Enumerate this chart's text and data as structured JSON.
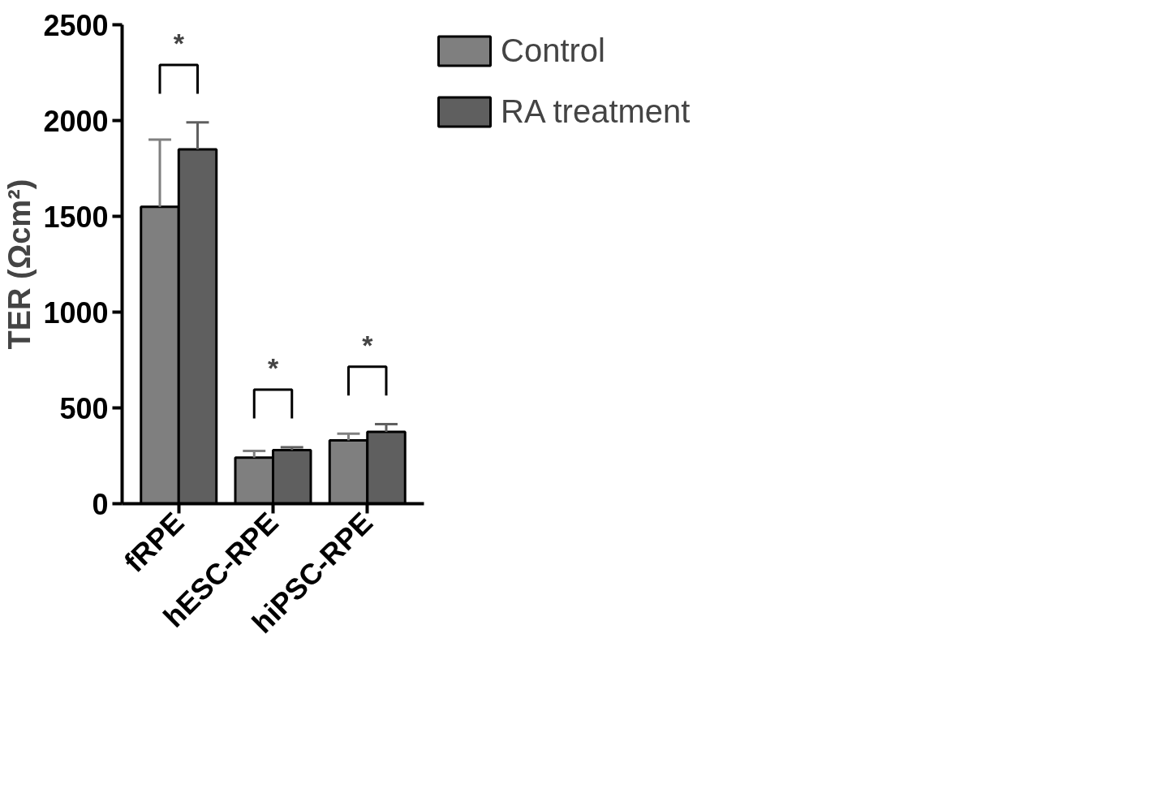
{
  "chart_data": {
    "type": "bar",
    "ylabel": "TER (Ωcm²)",
    "categories": [
      "fRPE",
      "hESC-RPE",
      "hiPSC-RPE"
    ],
    "series": [
      {
        "name": "Control",
        "color": "#7f7f7f",
        "values": [
          1550,
          240,
          330
        ],
        "errors": [
          350,
          35,
          35
        ]
      },
      {
        "name": "RA treatment",
        "color": "#5f5f5f",
        "values": [
          1850,
          280,
          375
        ],
        "errors": [
          140,
          15,
          40
        ]
      }
    ],
    "ylim": [
      0,
      2500
    ],
    "yticks": [
      0,
      500,
      1000,
      1500,
      2000,
      2500
    ],
    "grid": false,
    "legend": "top right",
    "annotations": [
      "*",
      "*",
      "*"
    ]
  }
}
